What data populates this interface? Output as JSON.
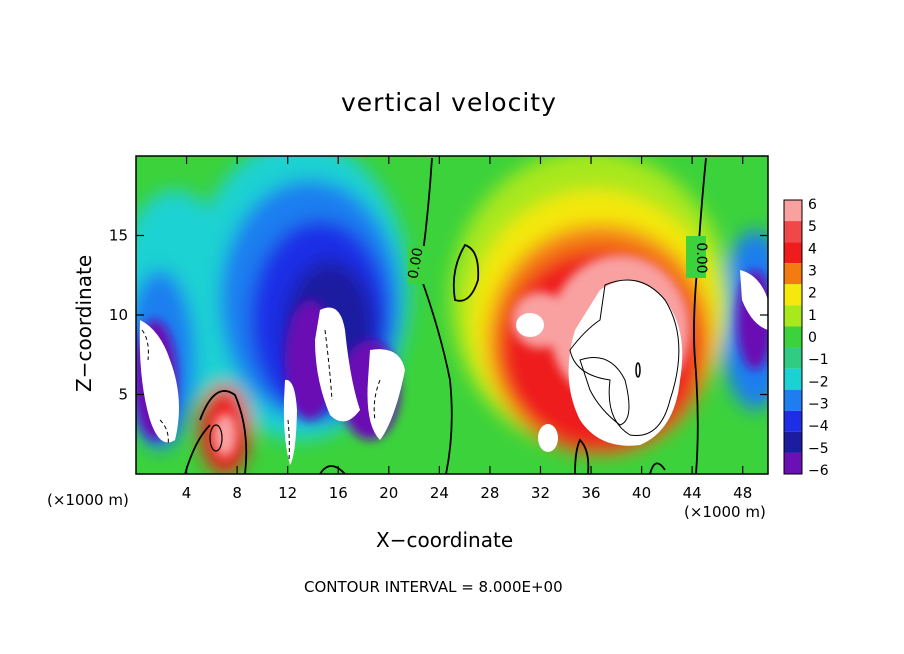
{
  "chart_data": {
    "type": "heatmap",
    "title": "vertical velocity",
    "xlabel": "X−coordinate",
    "ylabel": "Z−coordinate",
    "x_unit": "(×1000 m)",
    "x_unit_right": "(×1000 m)",
    "xlim": [
      0,
      50
    ],
    "ylim": [
      0,
      20
    ],
    "x_ticks": [
      "4",
      "8",
      "12",
      "16",
      "20",
      "24",
      "28",
      "32",
      "36",
      "40",
      "44",
      "48"
    ],
    "y_ticks": [
      "5",
      "10",
      "15"
    ],
    "colorbar": {
      "levels": [
        "6",
        "5",
        "4",
        "3",
        "2",
        "1",
        "0",
        "−1",
        "−2",
        "−3",
        "−4",
        "−5",
        "−6"
      ],
      "colors": [
        "#f9a0a0",
        "#f04848",
        "#ee1c1c",
        "#f47a12",
        "#f4e80c",
        "#a8e81c",
        "#3cd23c",
        "#30cc82",
        "#1ad2d2",
        "#1e7ef0",
        "#1e2ee6",
        "#1c1ca0",
        "#6a10b4"
      ]
    },
    "contour_labels": [
      "0.00",
      "0.00"
    ],
    "contour_interval_text": "CONTOUR INTERVAL =  8.000E+00"
  }
}
